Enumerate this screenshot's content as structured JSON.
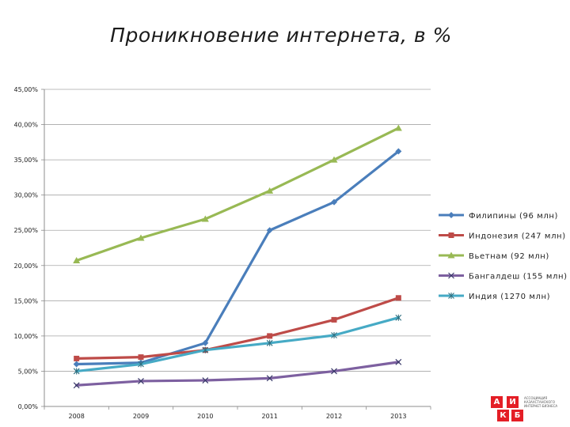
{
  "title": "Проникновение интернета, в %",
  "chart_data": {
    "type": "line",
    "title": "Проникновение интернета, в %",
    "xlabel": "",
    "ylabel": "",
    "categories": [
      "2008",
      "2009",
      "2010",
      "2011",
      "2012",
      "2013"
    ],
    "ylim": [
      0,
      45
    ],
    "yticks": [
      0,
      5,
      10,
      15,
      20,
      25,
      30,
      35,
      40,
      45
    ],
    "ytick_labels": [
      "0,00%",
      "5,00%",
      "10,00%",
      "15,00%",
      "20,00%",
      "25,00%",
      "30,00%",
      "35,00%",
      "40,00%",
      "45,00%"
    ],
    "grid": true,
    "legend_position": "right",
    "series": [
      {
        "name": "Филипины (96 млн)",
        "color": "#4a7ebb",
        "marker": "diamond",
        "values": [
          6.0,
          6.2,
          9.0,
          25.0,
          29.0,
          36.2
        ]
      },
      {
        "name": "Индонезия (247 млн)",
        "color": "#be4b48",
        "marker": "square",
        "values": [
          6.8,
          7.0,
          8.0,
          10.0,
          12.3,
          15.4
        ]
      },
      {
        "name": "Вьетнам (92 млн)",
        "color": "#98b954",
        "marker": "triangle",
        "values": [
          20.7,
          23.9,
          26.6,
          30.6,
          35.0,
          39.5
        ]
      },
      {
        "name": "Бангалдеш (155 млн)",
        "color": "#7d60a0",
        "marker": "x",
        "values": [
          3.0,
          3.6,
          3.7,
          4.0,
          5.0,
          6.3
        ]
      },
      {
        "name": "Индия (1270 млн)",
        "color": "#46aac5",
        "marker": "star",
        "values": [
          5.0,
          6.0,
          8.0,
          9.0,
          10.1,
          12.6
        ]
      }
    ]
  },
  "logo": {
    "letters": [
      "А",
      "И",
      "К",
      "Б"
    ],
    "text": "Ассоциация казахстанского интернет-бизнеса"
  }
}
